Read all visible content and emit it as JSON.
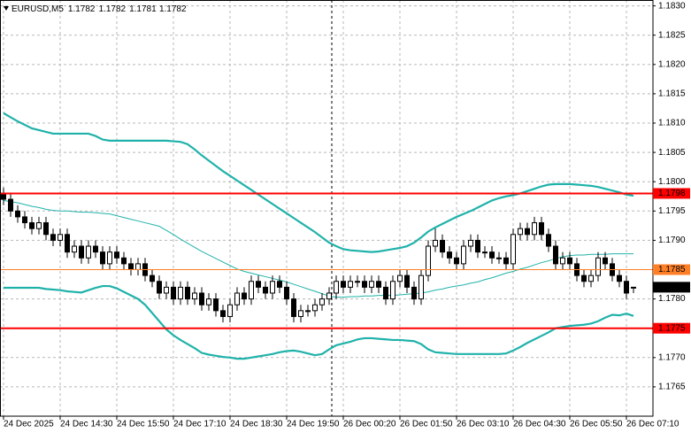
{
  "chart_data": {
    "type": "candlestick",
    "title": "EURUSD,M5",
    "ohlc_header": [
      1.1782,
      1.1782,
      1.1781,
      1.1782
    ],
    "categories": [
      "24 Dec 2025",
      null,
      null,
      null,
      null,
      null,
      null,
      null,
      "24 Dec 14:30",
      null,
      null,
      null,
      null,
      null,
      null,
      null,
      "24 Dec 15:50",
      null,
      null,
      null,
      null,
      null,
      null,
      null,
      "24 Dec 17:10",
      null,
      null,
      null,
      null,
      null,
      null,
      null,
      "24 Dec 18:30",
      null,
      null,
      null,
      null,
      null,
      null,
      null,
      "24 Dec 19:50",
      null,
      null,
      null,
      null,
      null,
      null,
      null,
      "26 Dec 00:20",
      null,
      null,
      null,
      null,
      null,
      null,
      null,
      "26 Dec 01:50",
      null,
      null,
      null,
      null,
      null,
      null,
      null,
      "26 Dec 03:10",
      null,
      null,
      null,
      null,
      null,
      null,
      null,
      "26 Dec 04:30",
      null,
      null,
      null,
      null,
      null,
      null,
      null,
      "26 Dec 05:50",
      null,
      null,
      null,
      null,
      null,
      null,
      null,
      "26 Dec 07:10",
      null
    ],
    "open": [
      1.1798,
      1.1797,
      1.1795,
      1.1794,
      1.1793,
      1.1792,
      1.1793,
      1.1791,
      1.179,
      1.1791,
      1.1788,
      1.1789,
      1.1787,
      1.1789,
      1.1788,
      1.1786,
      1.1788,
      1.1787,
      1.1786,
      1.1785,
      1.1786,
      1.1784,
      1.1783,
      1.1781,
      1.1782,
      1.178,
      1.1782,
      1.178,
      1.1781,
      1.1779,
      1.178,
      1.1778,
      1.1777,
      1.1779,
      1.1781,
      1.178,
      1.1783,
      1.1782,
      1.1781,
      1.1783,
      1.1782,
      1.178,
      1.1777,
      1.1778,
      1.1778,
      1.1779,
      1.178,
      1.1781,
      1.1783,
      1.1782,
      1.1783,
      1.1783,
      1.1782,
      1.1783,
      1.1782,
      1.178,
      1.1783,
      1.1784,
      1.1782,
      1.178,
      1.1784,
      1.1789,
      1.179,
      1.1788,
      1.1787,
      1.1786,
      1.1789,
      1.179,
      1.1788,
      1.1788,
      1.1787,
      1.1787,
      1.1786,
      1.1791,
      1.1792,
      1.1791,
      1.1793,
      1.1791,
      1.1789,
      1.1786,
      1.1787,
      1.1786,
      1.1784,
      1.1783,
      1.1784,
      1.1787,
      1.1786,
      1.1784,
      1.1783,
      1.1782
    ],
    "high": [
      1.1799,
      1.1798,
      1.1796,
      1.1795,
      1.1794,
      1.1794,
      1.1794,
      1.1792,
      1.1792,
      1.1792,
      1.179,
      1.179,
      1.179,
      1.179,
      1.1789,
      1.1789,
      1.1789,
      1.1788,
      1.1787,
      1.1787,
      1.1787,
      1.1785,
      1.1784,
      1.1783,
      1.1783,
      1.1783,
      1.1783,
      1.1782,
      1.1782,
      1.1781,
      1.1781,
      1.1779,
      1.178,
      1.1782,
      1.1782,
      1.1784,
      1.1784,
      1.1783,
      1.1784,
      1.1784,
      1.1783,
      1.1781,
      1.1779,
      1.1779,
      1.178,
      1.1781,
      1.1782,
      1.1784,
      1.1784,
      1.1784,
      1.1784,
      1.1784,
      1.1784,
      1.1784,
      1.1783,
      1.1784,
      1.1785,
      1.1785,
      1.1783,
      1.1785,
      1.179,
      1.1792,
      1.1791,
      1.1789,
      1.1788,
      1.179,
      1.1791,
      1.1791,
      1.1789,
      1.1789,
      1.1788,
      1.1788,
      1.1792,
      1.1793,
      1.1793,
      1.1794,
      1.1794,
      1.1792,
      1.179,
      1.1788,
      1.1788,
      1.1787,
      1.1785,
      1.1785,
      1.1788,
      1.1788,
      1.1787,
      1.1785,
      1.1784,
      1.1782
    ],
    "low": [
      1.1796,
      1.1794,
      1.1793,
      1.1792,
      1.1791,
      1.1791,
      1.179,
      1.1789,
      1.1789,
      1.1787,
      1.1787,
      1.1786,
      1.1786,
      1.1787,
      1.1785,
      1.1785,
      1.1786,
      1.1785,
      1.1784,
      1.1784,
      1.1783,
      1.1782,
      1.178,
      1.178,
      1.1779,
      1.1779,
      1.1779,
      1.1779,
      1.1778,
      1.1778,
      1.1777,
      1.1776,
      1.1776,
      1.1778,
      1.1779,
      1.1779,
      1.1781,
      1.178,
      1.178,
      1.1781,
      1.1779,
      1.1776,
      1.1776,
      1.1777,
      1.1777,
      1.1778,
      1.1779,
      1.178,
      1.1781,
      1.1781,
      1.1782,
      1.1781,
      1.1781,
      1.1781,
      1.1779,
      1.1779,
      1.1782,
      1.1781,
      1.1779,
      1.1779,
      1.1783,
      1.1788,
      1.1787,
      1.1786,
      1.1785,
      1.1785,
      1.1788,
      1.1787,
      1.1787,
      1.1786,
      1.1786,
      1.1785,
      1.1785,
      1.179,
      1.179,
      1.179,
      1.179,
      1.1788,
      1.1785,
      1.1785,
      1.1785,
      1.1783,
      1.1782,
      1.1782,
      1.1783,
      1.1785,
      1.1783,
      1.1782,
      1.178,
      1.1781
    ],
    "close": [
      1.1797,
      1.1795,
      1.1794,
      1.1793,
      1.1792,
      1.1793,
      1.1791,
      1.179,
      1.1791,
      1.1788,
      1.1789,
      1.1787,
      1.1789,
      1.1788,
      1.1786,
      1.1788,
      1.1787,
      1.1786,
      1.1785,
      1.1786,
      1.1784,
      1.1783,
      1.1781,
      1.1782,
      1.178,
      1.1782,
      1.178,
      1.1781,
      1.1779,
      1.178,
      1.1778,
      1.1777,
      1.1779,
      1.1781,
      1.178,
      1.1783,
      1.1782,
      1.1781,
      1.1783,
      1.1782,
      1.178,
      1.1777,
      1.1778,
      1.1778,
      1.1779,
      1.178,
      1.1781,
      1.1783,
      1.1782,
      1.1783,
      1.1783,
      1.1782,
      1.1783,
      1.1782,
      1.178,
      1.1783,
      1.1784,
      1.1782,
      1.178,
      1.1784,
      1.1789,
      1.179,
      1.1788,
      1.1787,
      1.1786,
      1.1789,
      1.179,
      1.1788,
      1.1788,
      1.1787,
      1.1787,
      1.1786,
      1.1791,
      1.1792,
      1.1791,
      1.1793,
      1.1791,
      1.1789,
      1.1786,
      1.1787,
      1.1786,
      1.1784,
      1.1783,
      1.1784,
      1.1787,
      1.1786,
      1.1784,
      1.1783,
      1.1781,
      1.1782
    ],
    "candle_color": "#000000",
    "overlays": [
      {
        "color": "#20b2aa",
        "width": 2.2,
        "values": [
          1.18117,
          1.1811,
          1.18103,
          1.18097,
          1.18091,
          1.18088,
          1.18085,
          1.18082,
          1.18082,
          1.18082,
          1.18082,
          1.18082,
          1.18082,
          1.18078,
          1.18072,
          1.1807,
          1.1807,
          1.1807,
          1.1807,
          1.1807,
          1.1807,
          1.1807,
          1.1807,
          1.1807,
          1.18069,
          1.18068,
          1.18064,
          1.18055,
          1.18045,
          1.18036,
          1.18027,
          1.18018,
          1.1801,
          1.18002,
          1.17994,
          1.17986,
          1.17978,
          1.1797,
          1.17962,
          1.17954,
          1.17946,
          1.17938,
          1.1793,
          1.17922,
          1.17914,
          1.17905,
          1.17896,
          1.1789,
          1.17885,
          1.17883,
          1.17882,
          1.17881,
          1.1788,
          1.17881,
          1.17883,
          1.17885,
          1.17887,
          1.1789,
          1.17896,
          1.17905,
          1.17915,
          1.17922,
          1.17928,
          1.17934,
          1.1794,
          1.17945,
          1.1795,
          1.17956,
          1.17962,
          1.17968,
          1.17972,
          1.17975,
          1.17977,
          1.1798,
          1.17984,
          1.17988,
          1.17992,
          1.17995,
          1.17996,
          1.17996,
          1.17996,
          1.17995,
          1.17994,
          1.17993,
          1.17991,
          1.17988,
          1.17985,
          1.17982,
          1.17978,
          1.17976
        ]
      },
      {
        "color": "#20b2aa",
        "width": 1,
        "values": [
          1.17968,
          1.17966,
          1.17964,
          1.17961,
          1.17958,
          1.17956,
          1.17953,
          1.17951,
          1.1795,
          1.1795,
          1.17949,
          1.17948,
          1.17948,
          1.17947,
          1.17946,
          1.17945,
          1.17942,
          1.17939,
          1.17936,
          1.17933,
          1.1793,
          1.17927,
          1.17924,
          1.17917,
          1.1791,
          1.17902,
          1.17895,
          1.17888,
          1.17881,
          1.17875,
          1.17869,
          1.17863,
          1.17857,
          1.17851,
          1.17847,
          1.17844,
          1.17841,
          1.17838,
          1.17835,
          1.17832,
          1.17829,
          1.17825,
          1.17821,
          1.17817,
          1.17813,
          1.17809,
          1.17805,
          1.17803,
          1.17803,
          1.17804,
          1.17804,
          1.17805,
          1.17805,
          1.17806,
          1.17806,
          1.17806,
          1.17807,
          1.17808,
          1.17809,
          1.1781,
          1.17812,
          1.17815,
          1.17817,
          1.1782,
          1.17822,
          1.17824,
          1.17827,
          1.17829,
          1.17833,
          1.17836,
          1.1784,
          1.17844,
          1.17847,
          1.17851,
          1.17854,
          1.17858,
          1.17862,
          1.17865,
          1.17869,
          1.17872,
          1.17874,
          1.17875,
          1.17875,
          1.17876,
          1.17876,
          1.17876,
          1.17877,
          1.17877,
          1.17877,
          1.17877
        ]
      },
      {
        "color": "#20b2aa",
        "width": 2.2,
        "values": [
          1.17819,
          1.17819,
          1.17819,
          1.17819,
          1.17819,
          1.17819,
          1.17817,
          1.17816,
          1.17815,
          1.17813,
          1.17812,
          1.17811,
          1.17815,
          1.17819,
          1.17822,
          1.17822,
          1.17818,
          1.17812,
          1.17806,
          1.178,
          1.1779,
          1.17776,
          1.17762,
          1.17748,
          1.17738,
          1.1773,
          1.17723,
          1.17716,
          1.17708,
          1.17705,
          1.17703,
          1.17701,
          1.177,
          1.17698,
          1.17698,
          1.177,
          1.17702,
          1.17704,
          1.17706,
          1.17709,
          1.17711,
          1.17712,
          1.1771,
          1.17707,
          1.17704,
          1.17706,
          1.17714,
          1.17721,
          1.17724,
          1.17727,
          1.17731,
          1.17733,
          1.17733,
          1.17732,
          1.17731,
          1.1773,
          1.1773,
          1.17729,
          1.17728,
          1.17723,
          1.17714,
          1.17709,
          1.17708,
          1.17707,
          1.17706,
          1.17706,
          1.17706,
          1.17706,
          1.17706,
          1.17706,
          1.17706,
          1.17707,
          1.17712,
          1.17718,
          1.17725,
          1.17731,
          1.17737,
          1.17743,
          1.1775,
          1.17752,
          1.17754,
          1.17755,
          1.17756,
          1.17758,
          1.17762,
          1.17768,
          1.17773,
          1.17772,
          1.17775,
          1.17771
        ]
      }
    ],
    "levels": [
      {
        "value": 1.1798,
        "color": "#ff0000",
        "width": 2
      },
      {
        "value": 1.1785,
        "color": "#ff7f27",
        "width": 1
      },
      {
        "value": 1.1775,
        "color": "#ff0000",
        "width": 2
      }
    ],
    "current_price": {
      "value": 1.1782,
      "color": "#000000"
    },
    "ylim": [
      1.176,
      1.1831
    ],
    "yticks": [
      {
        "value": 1.183,
        "label": "1.1830"
      },
      1.1825,
      {
        "value": 1.182,
        "label": "1.1820"
      },
      1.1815,
      {
        "value": 1.181,
        "label": "1.1810"
      },
      1.1805,
      {
        "value": 1.18,
        "label": "1.1800"
      },
      1.1795,
      {
        "value": 1.179,
        "label": "1.1790"
      },
      1.1785,
      {
        "value": 1.178,
        "label": "1.1780"
      },
      1.1775,
      {
        "value": 1.177,
        "label": "1.1770"
      },
      1.1765
    ],
    "grid": true
  }
}
